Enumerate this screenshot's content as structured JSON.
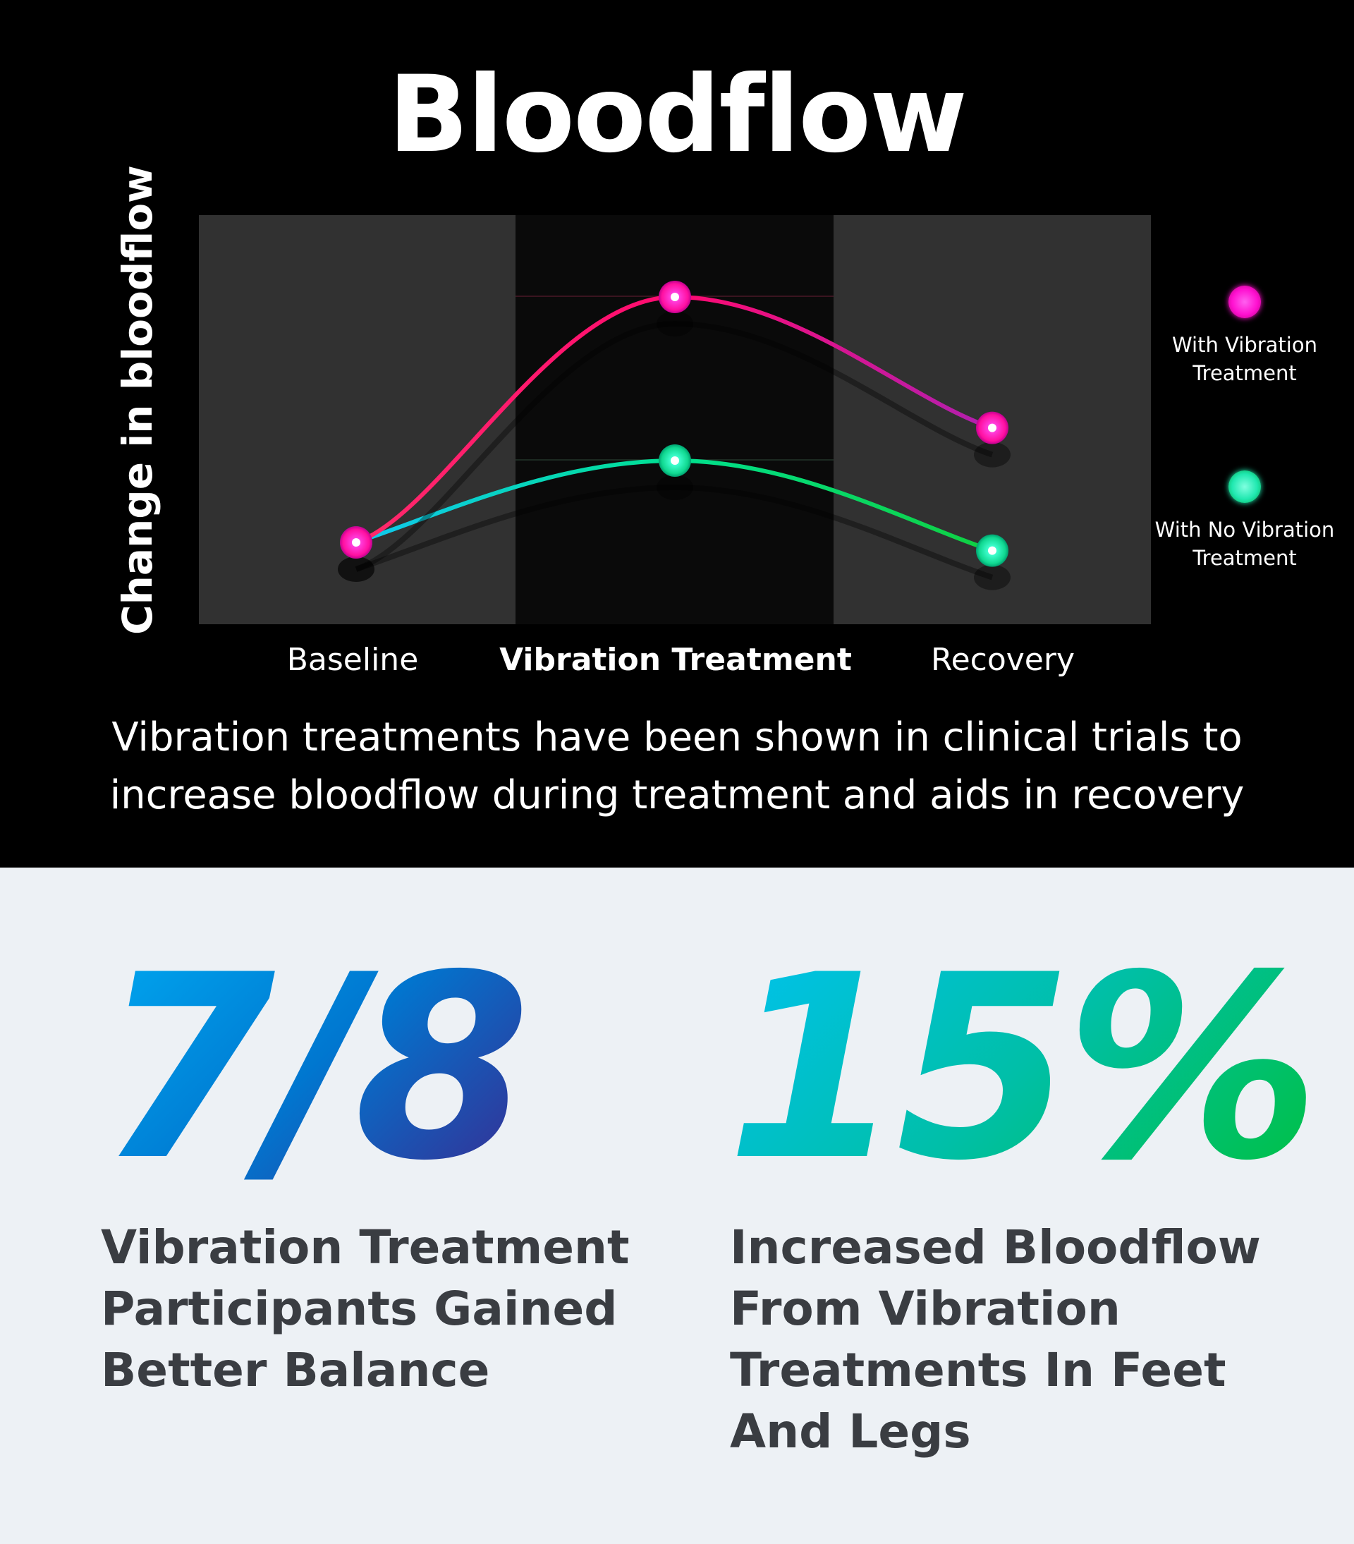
{
  "title": "Bloodflow",
  "caption": {
    "line1": "Vibration treatments have been shown in clinical trials to",
    "line2": "increase bloodflow during treatment and aids in recovery"
  },
  "chart_data": {
    "type": "line",
    "title": "Bloodflow",
    "ylabel": "Change in bloodflow",
    "xlabel": "",
    "categories": [
      "Baseline",
      "Vibration Treatment",
      "Recovery"
    ],
    "highlighted_category": "Vibration Treatment",
    "ylim": [
      0,
      10
    ],
    "yticks_shown": false,
    "grid": false,
    "legend_position": "right",
    "series": [
      {
        "name": "With Vibration Treatment",
        "values": [
          2,
          8,
          4.8
        ],
        "color": "#ff1a8c"
      },
      {
        "name": "With No Vibration Treatment",
        "values": [
          2,
          4,
          1.8
        ],
        "color": "#00d68f"
      }
    ],
    "shaded_regions": [
      "Baseline",
      "Recovery"
    ]
  },
  "legend": {
    "item1": {
      "line1": "With Vibration",
      "line2": "Treatment",
      "color": "#ff10d0"
    },
    "item2": {
      "line1": "With No Vibration",
      "line2": "Treatment",
      "color": "#20e8b0"
    }
  },
  "stats": [
    {
      "value": "7/8",
      "label_lines": [
        "Vibration Treatment",
        "Participants Gained",
        "Better Balance"
      ]
    },
    {
      "value": "15%",
      "label_lines": [
        "Increased Bloodflow",
        "From Vibration",
        "Treatments In Feet",
        "And Legs"
      ]
    }
  ],
  "colors": {
    "stat1_gradient": [
      "#00a8f0",
      "#0077d0",
      "#3a2a90"
    ],
    "stat2_gradient": [
      "#00c2ee",
      "#00bfa8",
      "#00c040"
    ],
    "label_text": "#3a3d42",
    "bottom_bg": "#edf1f5"
  }
}
